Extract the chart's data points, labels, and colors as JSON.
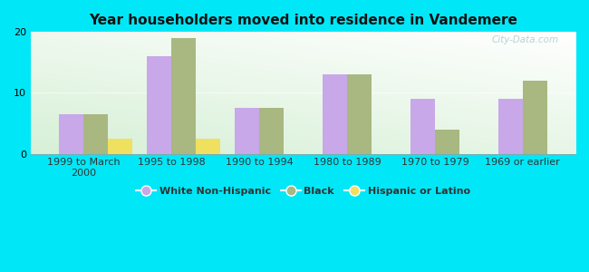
{
  "title": "Year householders moved into residence in Vandemere",
  "categories": [
    "1999 to March\n2000",
    "1995 to 1998",
    "1990 to 1994",
    "1980 to 1989",
    "1970 to 1979",
    "1969 or earlier"
  ],
  "white_non_hispanic": [
    6.5,
    16,
    7.5,
    13,
    9,
    9
  ],
  "black": [
    6.5,
    19,
    7.5,
    13,
    4,
    12
  ],
  "hispanic_or_latino": [
    2.5,
    2.5,
    0,
    0,
    0,
    0
  ],
  "color_white": "#c8a8e8",
  "color_black": "#a8b880",
  "color_hispanic": "#f0e060",
  "bar_width": 0.28,
  "ylim": [
    0,
    20
  ],
  "yticks": [
    0,
    10,
    20
  ],
  "background_outer": "#00e8f8",
  "watermark": "City-Data.com"
}
